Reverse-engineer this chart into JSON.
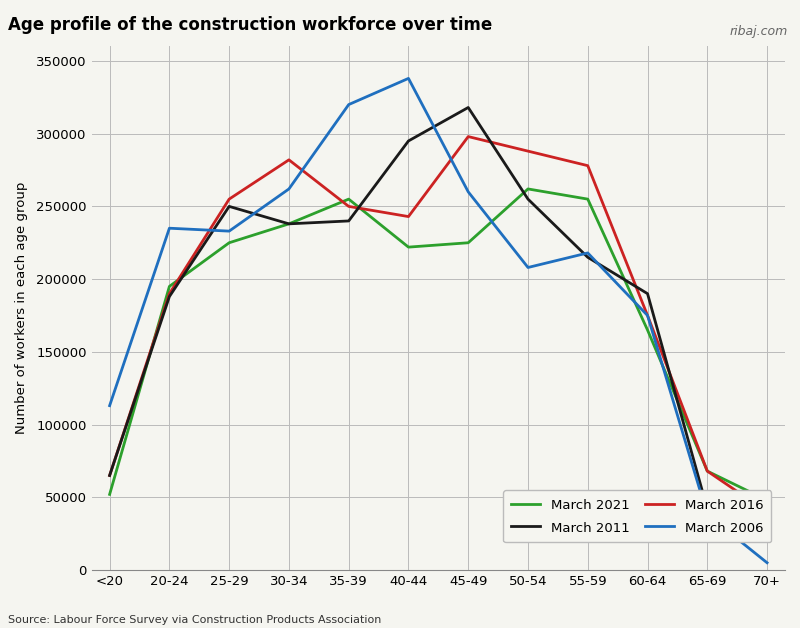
{
  "title": "Age profile of the construction workforce over time",
  "ylabel": "Number of workers in each age group",
  "source": "Source: Labour Force Survey via Construction Products Association",
  "watermark": "ribaj.com",
  "categories": [
    "<20",
    "20-24",
    "25-29",
    "30-34",
    "35-39",
    "40-44",
    "45-49",
    "50-54",
    "55-59",
    "60-64",
    "65-69",
    "70+"
  ],
  "series": {
    "March 2021": {
      "color": "#2ca02c",
      "values": [
        52000,
        195000,
        225000,
        238000,
        255000,
        222000,
        225000,
        262000,
        255000,
        165000,
        68000,
        48000
      ]
    },
    "March 2016": {
      "color": "#cc2222",
      "values": [
        65000,
        190000,
        255000,
        282000,
        250000,
        243000,
        298000,
        288000,
        278000,
        175000,
        68000,
        40000
      ]
    },
    "March 2011": {
      "color": "#1a1a1a",
      "values": [
        65000,
        188000,
        250000,
        238000,
        240000,
        295000,
        318000,
        255000,
        215000,
        190000,
        42000,
        28000
      ]
    },
    "March 2006": {
      "color": "#1f6fbf",
      "values": [
        113000,
        235000,
        233000,
        262000,
        320000,
        338000,
        260000,
        208000,
        218000,
        175000,
        38000,
        5000
      ]
    }
  },
  "ylim": [
    0,
    360000
  ],
  "yticks": [
    0,
    50000,
    100000,
    150000,
    200000,
    250000,
    300000,
    350000
  ],
  "background_color": "#f5f5f0",
  "grid_color": "#bbbbbb",
  "title_fontsize": 12,
  "label_fontsize": 9.5,
  "legend_fontsize": 9.5,
  "source_fontsize": 8,
  "linewidth": 2.0
}
